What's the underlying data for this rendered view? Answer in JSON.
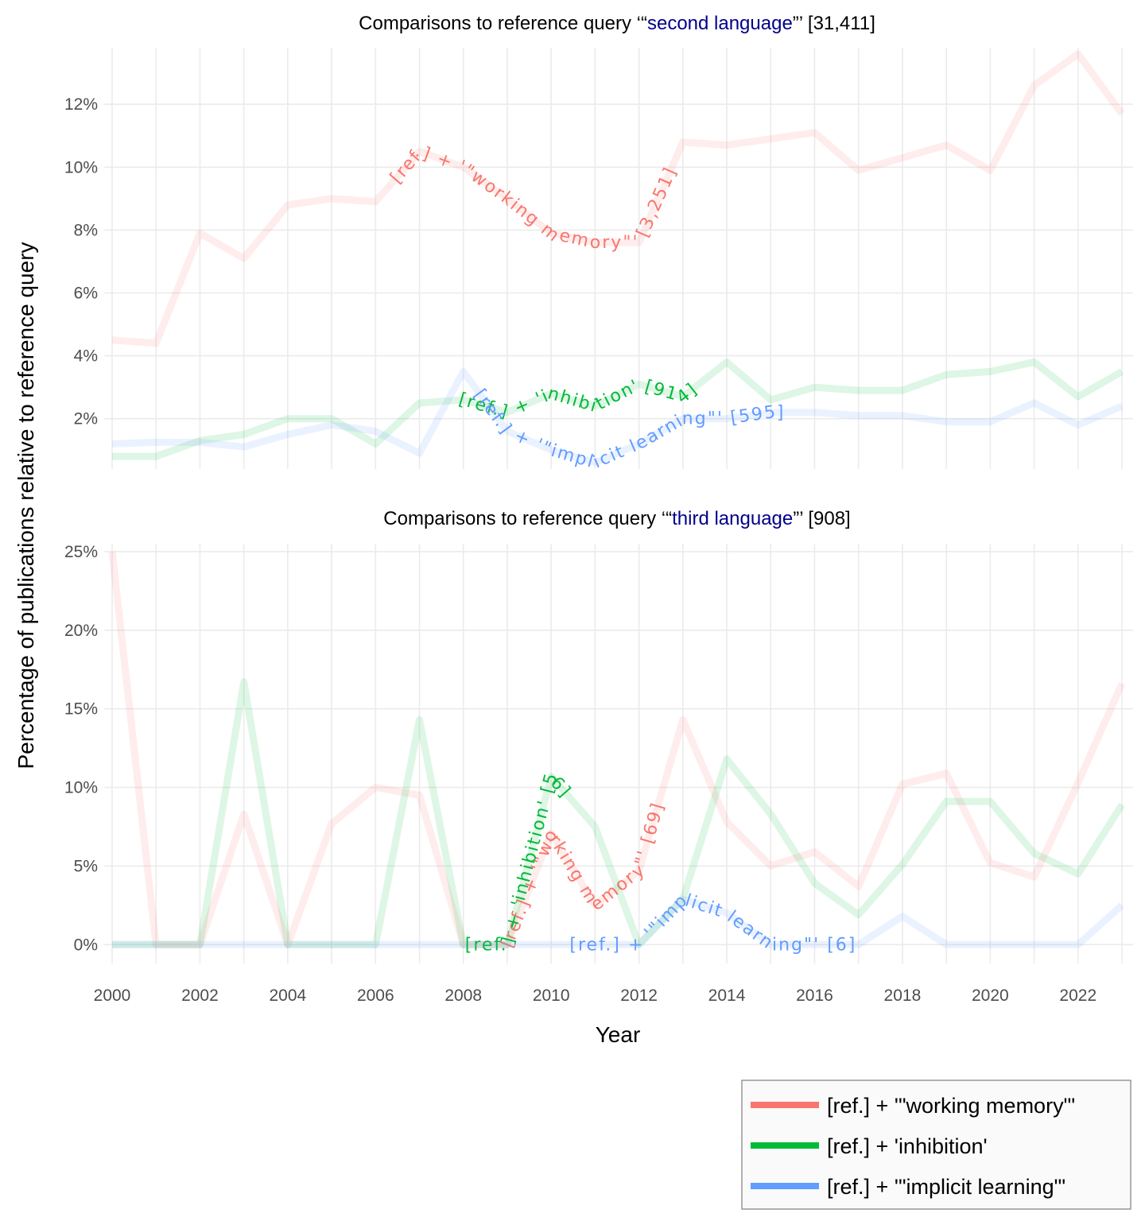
{
  "chart_data": [
    {
      "type": "line",
      "title_prefix": "Comparisons to reference query ‘“",
      "title_query": "second language",
      "title_suffix": "”’ [31,411]",
      "query_color": "#00008b",
      "xlabel": "Year",
      "ylabel": "Percentage of publications relative to reference query",
      "xlim": [
        2000,
        2023
      ],
      "ylim": [
        0.4,
        13.8
      ],
      "x_ticks": [
        2000,
        2002,
        2004,
        2006,
        2008,
        2010,
        2012,
        2014,
        2016,
        2018,
        2020,
        2022
      ],
      "x_tick_labels": [
        "2000",
        "2002",
        "2004",
        "2006",
        "2008",
        "2010",
        "2012",
        "2014",
        "2016",
        "2018",
        "2020",
        "2022"
      ],
      "y_ticks": [
        2,
        4,
        6,
        8,
        10,
        12
      ],
      "y_tick_labels": [
        "2%",
        "4%",
        "6%",
        "8%",
        "10%",
        "12%"
      ],
      "grid": true,
      "x": [
        2000,
        2001,
        2002,
        2003,
        2004,
        2005,
        2006,
        2007,
        2008,
        2009,
        2010,
        2011,
        2012,
        2013,
        2014,
        2015,
        2016,
        2017,
        2018,
        2019,
        2020,
        2021,
        2022,
        2023
      ],
      "series": [
        {
          "name": "[ref.] + '\"working memory\"'",
          "color": "#f8766d",
          "label": "[ref.] + '\"working memory\"' [3,251]",
          "values": [
            4.5,
            4.4,
            7.9,
            7.1,
            8.8,
            9.0,
            8.9,
            10.5,
            10.0,
            9.0,
            7.9,
            7.6,
            7.6,
            10.8,
            10.7,
            10.9,
            11.1,
            9.9,
            10.3,
            10.7,
            9.9,
            12.6,
            13.6,
            11.7
          ]
        },
        {
          "name": "[ref.] + 'inhibition'",
          "color": "#00ba38",
          "label": "[ref.] + 'inhibition' [914]",
          "values": [
            0.8,
            0.8,
            1.3,
            1.5,
            2.0,
            2.0,
            1.2,
            2.5,
            2.6,
            2.2,
            2.8,
            2.4,
            3.1,
            2.7,
            3.8,
            2.6,
            3.0,
            2.9,
            2.9,
            3.4,
            3.5,
            3.8,
            2.7,
            3.5
          ]
        },
        {
          "name": "[ref.] + '\"implicit learning\"'",
          "color": "#619cff",
          "label": "[ref.] + '\"implicit learning\"' [595]",
          "values": [
            1.2,
            1.25,
            1.25,
            1.1,
            1.5,
            1.8,
            1.6,
            0.9,
            3.5,
            1.6,
            1.0,
            0.6,
            1.2,
            2.0,
            2.0,
            2.2,
            2.2,
            2.1,
            2.1,
            1.9,
            1.9,
            2.5,
            1.8,
            2.4
          ]
        }
      ]
    },
    {
      "type": "line",
      "title_prefix": "Comparisons to reference query ‘“",
      "title_query": "third language",
      "title_suffix": "”’ [908]",
      "query_color": "#00008b",
      "xlim": [
        2000,
        2023
      ],
      "ylim": [
        -1.2,
        25.5
      ],
      "y_ticks": [
        0,
        5,
        10,
        15,
        20,
        25
      ],
      "y_tick_labels": [
        "0%",
        "5%",
        "10%",
        "15%",
        "20%",
        "25%"
      ],
      "grid": true,
      "x": [
        2000,
        2001,
        2002,
        2003,
        2004,
        2005,
        2006,
        2007,
        2008,
        2009,
        2010,
        2011,
        2012,
        2013,
        2014,
        2015,
        2016,
        2017,
        2018,
        2019,
        2020,
        2021,
        2022,
        2023
      ],
      "series": [
        {
          "name": "[ref.] + '\"working memory\"'",
          "color": "#f8766d",
          "label": "[ref.] + '\"working memory\"' [69]",
          "values": [
            25.0,
            0.0,
            0.0,
            8.3,
            0.0,
            7.7,
            10.0,
            9.5,
            0.0,
            0.0,
            7.1,
            2.5,
            4.7,
            14.3,
            7.8,
            5.0,
            5.9,
            3.7,
            10.2,
            10.9,
            5.2,
            4.3,
            10.3,
            16.6
          ]
        },
        {
          "name": "[ref.] + 'inhibition'",
          "color": "#00ba38",
          "label": "[ref.] + 'inhibition' [56]",
          "values": [
            0.0,
            0.0,
            0.0,
            16.7,
            0.0,
            0.0,
            0.0,
            14.3,
            0.0,
            0.0,
            10.7,
            7.5,
            0.0,
            2.9,
            11.8,
            8.3,
            3.9,
            1.9,
            5.1,
            9.1,
            9.1,
            5.8,
            4.5,
            8.9
          ]
        },
        {
          "name": "[ref.] + '\"implicit learning\"'",
          "color": "#619cff",
          "label": "[ref.] + '\"implicit learning\"' [6]",
          "values": [
            0.0,
            0.0,
            0.0,
            0.0,
            0.0,
            0.0,
            0.0,
            0.0,
            0.0,
            0.0,
            0.0,
            0.0,
            0.0,
            2.9,
            2.0,
            0.0,
            0.0,
            0.0,
            1.8,
            0.0,
            0.0,
            0.0,
            0.0,
            2.5
          ]
        }
      ]
    }
  ],
  "legend": {
    "position": "bottom-right",
    "items": [
      {
        "label": "[ref.] + '\"working memory\"'",
        "color": "#f8766d"
      },
      {
        "label": "[ref.] + 'inhibition'",
        "color": "#00ba38"
      },
      {
        "label": "[ref.] + '\"implicit learning\"'",
        "color": "#619cff"
      }
    ]
  }
}
